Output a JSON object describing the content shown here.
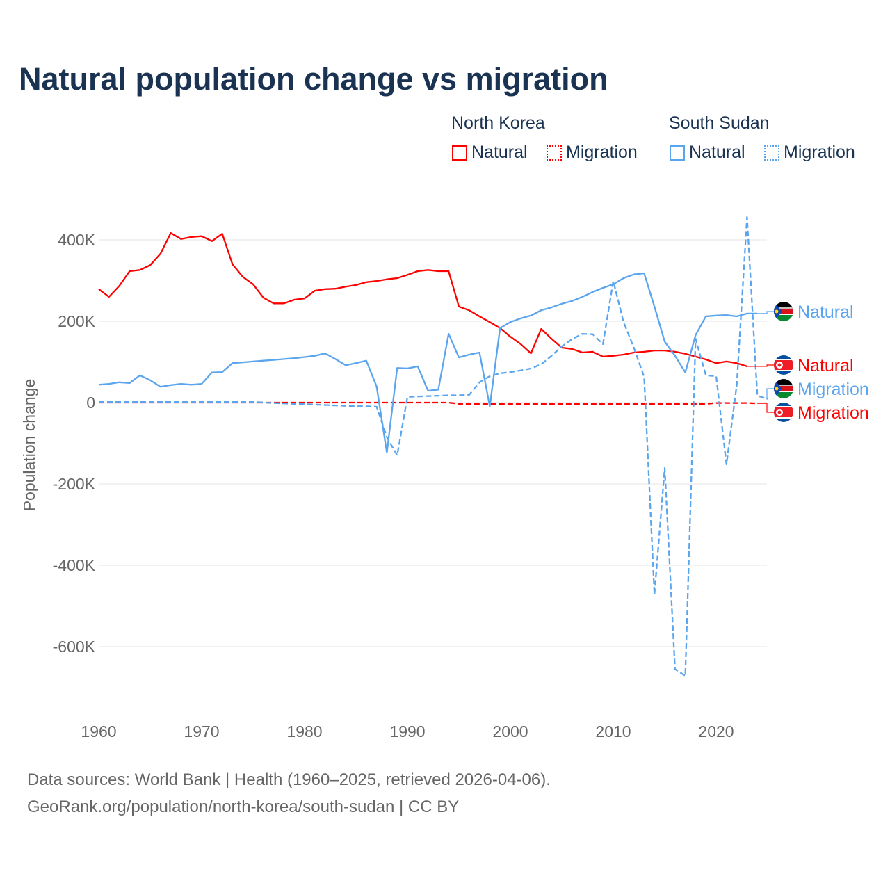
{
  "title": "Natural population change vs migration",
  "legend": {
    "groups": [
      {
        "name": "North Korea",
        "items": [
          "Natural",
          "Migration"
        ]
      },
      {
        "name": "South Sudan",
        "items": [
          "Natural",
          "Migration"
        ]
      }
    ]
  },
  "sources": {
    "line1": "Data sources: World Bank | Health (1960–2025, retrieved 2026-04-06).",
    "line2": "GeoRank.org/population/north-korea/south-sudan | CC BY"
  },
  "chart_data": {
    "type": "line",
    "title": "Natural population change vs migration",
    "xlabel": "",
    "ylabel": "Population change",
    "xlim": [
      1960,
      2025
    ],
    "ylim": [
      -700,
      460
    ],
    "y_unit": "thousands",
    "x_ticks": [
      1960,
      1970,
      1980,
      1990,
      2000,
      2010,
      2020
    ],
    "y_ticks": [
      {
        "v": 400,
        "label": "400K"
      },
      {
        "v": 200,
        "label": "200K"
      },
      {
        "v": 0,
        "label": "0"
      },
      {
        "v": -200,
        "label": "-200K"
      },
      {
        "v": -400,
        "label": "-400K"
      },
      {
        "v": -600,
        "label": "-600K"
      }
    ],
    "grid": true,
    "legend_placement": "top-right",
    "series": [
      {
        "name": "North Korea Natural",
        "label": "Natural",
        "country": "North Korea",
        "color": "#ff0000",
        "dash": false,
        "start": 1960,
        "values": [
          279,
          260,
          287,
          323,
          326,
          338,
          366,
          417,
          402,
          407,
          409,
          397,
          415,
          340,
          309,
          291,
          258,
          244,
          244,
          253,
          256,
          275,
          279,
          280,
          285,
          289,
          296,
          299,
          303,
          306,
          314,
          323,
          326,
          323,
          323,
          236,
          227,
          212,
          198,
          183,
          162,
          144,
          121,
          181,
          157,
          135,
          132,
          123,
          125,
          113,
          115,
          118,
          123,
          125,
          128,
          128,
          125,
          120,
          113,
          106,
          97,
          101,
          97,
          89
        ]
      },
      {
        "name": "North Korea Migration",
        "label": "Migration",
        "country": "North Korea",
        "color": "#ff0000",
        "dash": true,
        "start": 1960,
        "values": [
          0,
          0,
          0,
          0,
          0,
          0,
          0,
          0,
          0,
          0,
          0,
          0,
          0,
          0,
          0,
          0,
          0,
          0,
          0,
          0,
          0,
          0,
          0,
          0,
          0,
          0,
          0,
          0,
          0,
          0,
          0,
          0,
          0,
          0,
          0,
          -3,
          -3,
          -3,
          -3,
          -3,
          -3,
          -3,
          -3,
          -3,
          -3,
          -3,
          -3,
          -3,
          -3,
          -3,
          -3,
          -3,
          -3,
          -3,
          -3,
          -3,
          -3,
          -3,
          -3,
          -3,
          -1,
          -1,
          -1,
          -1,
          -2
        ]
      },
      {
        "name": "South Sudan Natural",
        "label": "Natural",
        "country": "South Sudan",
        "color": "#5aa5ee",
        "dash": false,
        "start": 1960,
        "values": [
          44,
          46,
          50,
          48,
          67,
          55,
          39,
          43,
          46,
          44,
          46,
          74,
          75,
          97,
          99,
          101,
          103,
          105,
          107,
          109,
          112,
          115,
          121,
          107,
          92,
          97,
          103,
          40,
          -123,
          85,
          84,
          89,
          29,
          32,
          169,
          111,
          118,
          123,
          -9,
          183,
          198,
          207,
          214,
          227,
          234,
          243,
          250,
          260,
          272,
          282,
          291,
          306,
          315,
          318,
          236,
          150,
          115,
          74,
          166,
          212,
          214,
          215,
          212,
          219,
          219
        ]
      },
      {
        "name": "South Sudan Migration",
        "label": "Migration",
        "country": "South Sudan",
        "color": "#5aa5ee",
        "dash": true,
        "start": 1960,
        "values": [
          2,
          2,
          2,
          2,
          2,
          2,
          2,
          2,
          2,
          2,
          2,
          2,
          2,
          2,
          2,
          2,
          0,
          -1,
          -2,
          -3,
          -4,
          -5,
          -6,
          -7,
          -8,
          -9,
          -9,
          -10,
          -85,
          -130,
          14,
          15,
          16,
          17,
          18,
          18,
          19,
          50,
          65,
          72,
          75,
          79,
          84,
          94,
          115,
          138,
          156,
          169,
          168,
          144,
          299,
          198,
          135,
          63,
          -472,
          -161,
          -655,
          -672,
          157,
          67,
          65,
          -152,
          43,
          456,
          17,
          9
        ]
      }
    ]
  }
}
